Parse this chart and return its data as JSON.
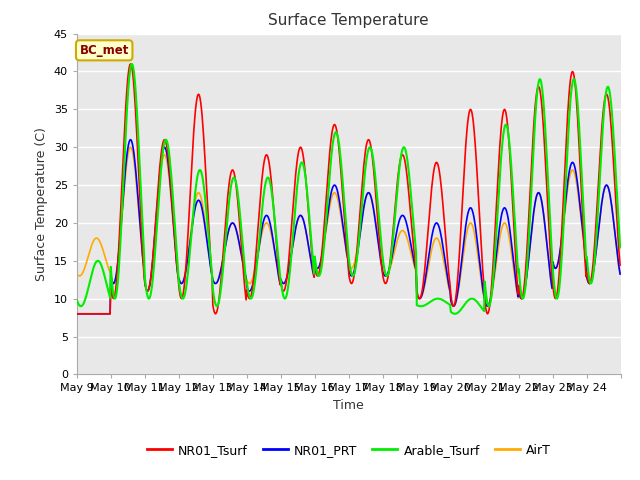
{
  "title": "Surface Temperature",
  "xlabel": "Time",
  "ylabel": "Surface Temperature (C)",
  "ylim": [
    0,
    45
  ],
  "yticks": [
    0,
    5,
    10,
    15,
    20,
    25,
    30,
    35,
    40,
    45
  ],
  "annotation_text": "BC_met",
  "annotation_bg": "#ffffcc",
  "annotation_border": "#ccaa00",
  "fig_bg": "#ffffff",
  "plot_bg": "#e8e8e8",
  "grid_color": "white",
  "series_colors": {
    "NR01_Tsurf": "#ff0000",
    "NR01_PRT": "#0000ff",
    "Arable_Tsurf": "#00ee00",
    "AirT": "#ffaa00"
  },
  "x_labels": [
    "May 9",
    "May 10",
    "May 11",
    "May 12",
    "May 13",
    "May 14",
    "May 15",
    "May 16",
    "May 17",
    "May 18",
    "May 19",
    "May 20",
    "May 21",
    "May 22",
    "May 23",
    "May 24"
  ],
  "num_days": 16,
  "points_per_day": 48,
  "day_maxes_NR": [
    8,
    41,
    31,
    37,
    27,
    29,
    30,
    33,
    31,
    29,
    28,
    35,
    35,
    38,
    40,
    37
  ],
  "day_mins_NR": [
    8,
    10,
    11,
    10,
    8,
    10,
    11,
    13,
    12,
    12,
    10,
    9,
    8,
    10,
    10,
    12
  ],
  "day_maxes_PRT": [
    8,
    31,
    30,
    23,
    20,
    21,
    21,
    25,
    24,
    21,
    20,
    22,
    22,
    24,
    28,
    25
  ],
  "day_mins_PRT": [
    8,
    12,
    11,
    12,
    12,
    11,
    12,
    14,
    13,
    13,
    10,
    9,
    9,
    10,
    14,
    12
  ],
  "day_maxes_Ar": [
    15,
    41,
    31,
    27,
    26,
    26,
    28,
    32,
    30,
    30,
    10,
    10,
    33,
    39,
    39,
    38
  ],
  "day_mins_Ar": [
    9,
    10,
    10,
    10,
    9,
    10,
    10,
    13,
    13,
    13,
    9,
    8,
    9,
    10,
    10,
    12
  ],
  "day_maxes_Air": [
    18,
    30,
    29,
    24,
    20,
    20,
    21,
    24,
    24,
    19,
    18,
    20,
    20,
    24,
    27,
    25
  ],
  "day_mins_Air": [
    13,
    12,
    11,
    12,
    12,
    12,
    12,
    14,
    14,
    13,
    10,
    9,
    9,
    10,
    14,
    12
  ]
}
